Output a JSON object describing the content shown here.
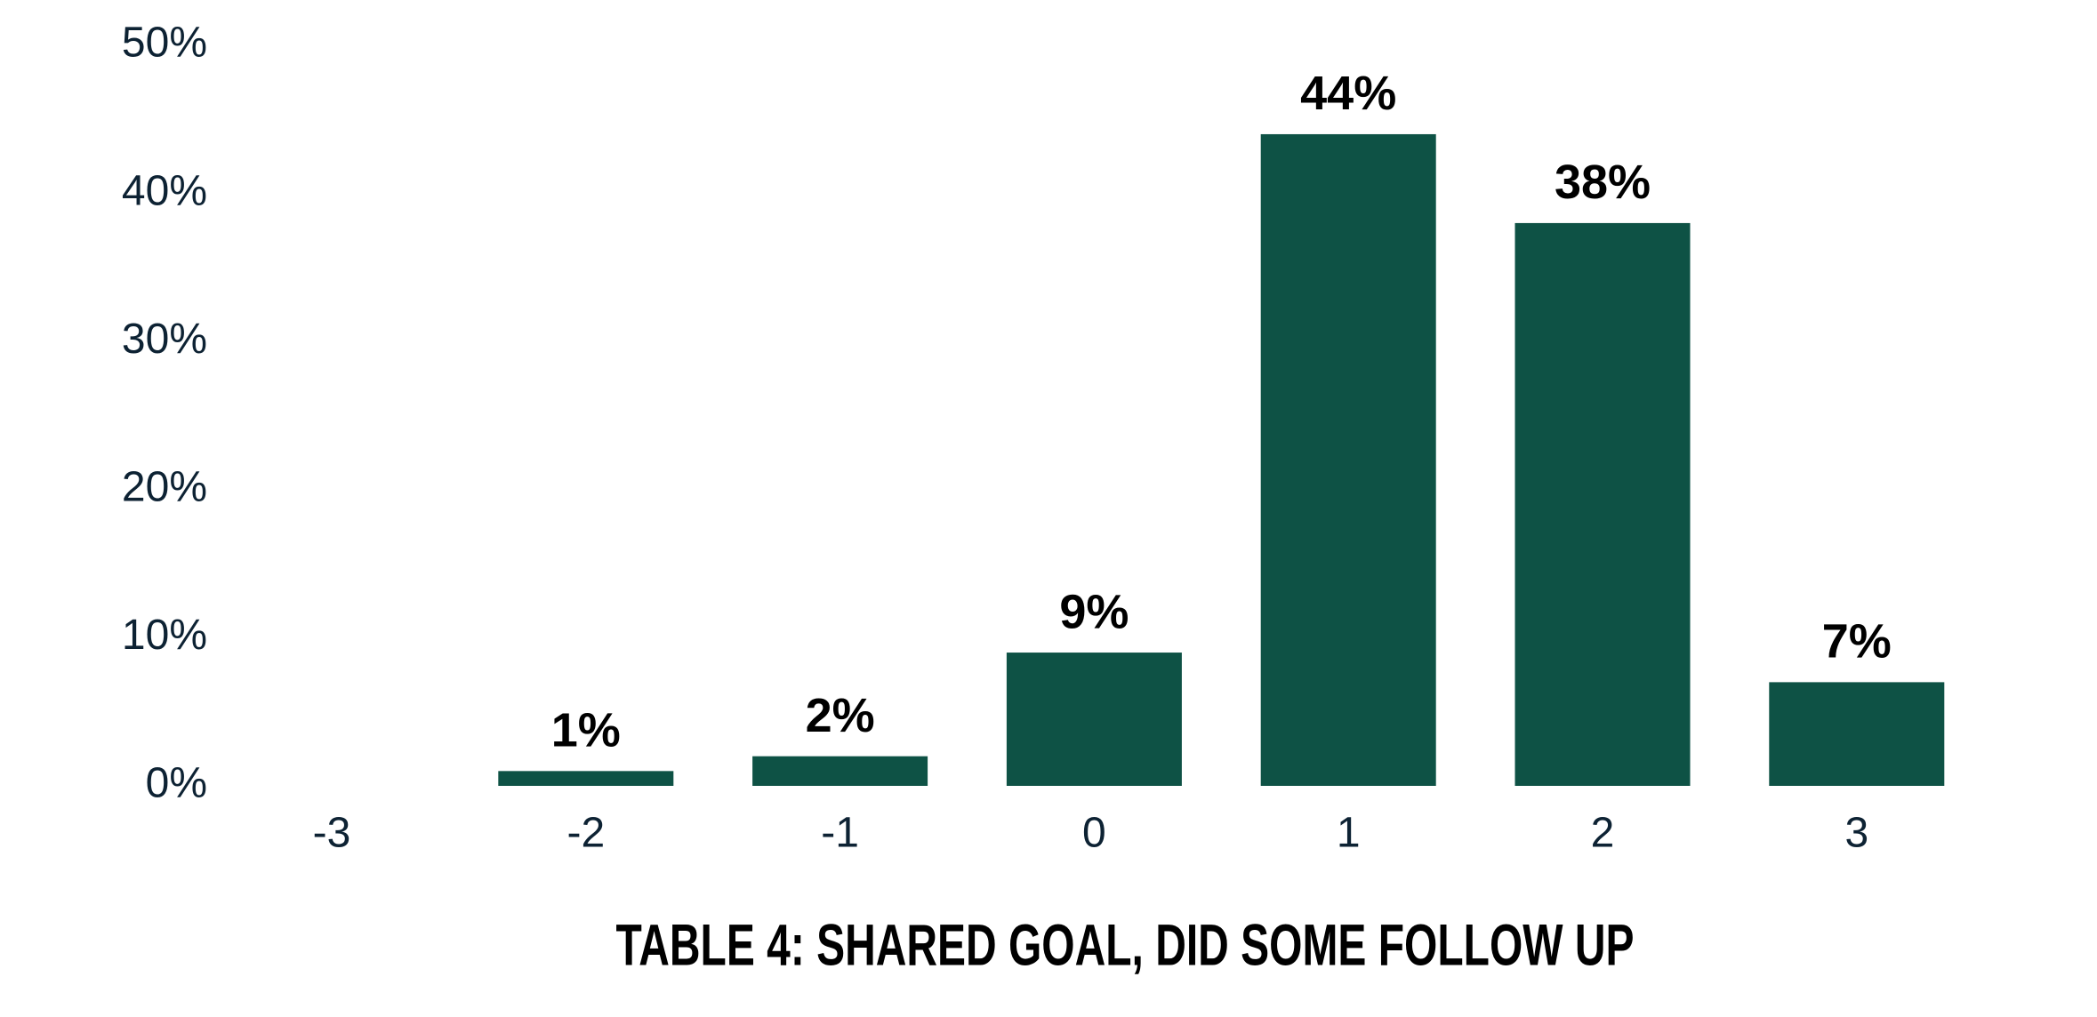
{
  "chart_data": {
    "type": "bar",
    "title": "TABLE 4: SHARED GOAL, DID SOME FOLLOW UP",
    "categories": [
      "-3",
      "-2",
      "-1",
      "0",
      "1",
      "2",
      "3"
    ],
    "values": [
      null,
      1,
      2,
      9,
      44,
      38,
      7
    ],
    "value_labels": [
      null,
      "1%",
      "2%",
      "9%",
      "44%",
      "38%",
      "7%"
    ],
    "color": "#0e5245",
    "ylim": [
      0,
      50
    ],
    "yticks": [
      {
        "value": 0,
        "label": "0%"
      },
      {
        "value": 10,
        "label": "10%"
      },
      {
        "value": 20,
        "label": "20%"
      },
      {
        "value": 30,
        "label": "30%"
      },
      {
        "value": 40,
        "label": "40%"
      },
      {
        "value": 50,
        "label": "50%"
      }
    ],
    "grid": false
  }
}
